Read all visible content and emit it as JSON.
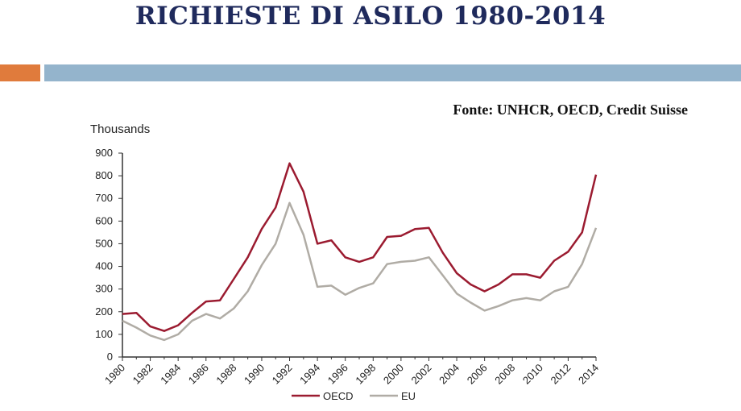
{
  "slide": {
    "title": "RICHIESTE DI ASILO 1980-2014",
    "source": "Fonte: UNHCR, OECD, Credit Suisse"
  },
  "colors": {
    "oecd": "#9b1b30",
    "eu": "#b0aca5",
    "title": "#1f2a5c"
  },
  "chart_data": {
    "type": "line",
    "ylabel": "Thousands",
    "ylim": [
      0,
      900
    ],
    "yticks": [
      0,
      100,
      200,
      300,
      400,
      500,
      600,
      700,
      800,
      900
    ],
    "xlim": [
      1980,
      2014
    ],
    "xticks": [
      "1980",
      "1982",
      "1984",
      "1986",
      "1988",
      "1990",
      "1992",
      "1994",
      "1996",
      "1998",
      "2000",
      "2002",
      "2004",
      "2006",
      "2008",
      "2010",
      "2012",
      "2014"
    ],
    "grid": false,
    "legend": "bottom",
    "x": [
      1980,
      1981,
      1982,
      1983,
      1984,
      1985,
      1986,
      1987,
      1988,
      1989,
      1990,
      1991,
      1992,
      1993,
      1994,
      1995,
      1996,
      1997,
      1998,
      1999,
      2000,
      2001,
      2002,
      2003,
      2004,
      2005,
      2006,
      2007,
      2008,
      2009,
      2010,
      2011,
      2012,
      2013,
      2014
    ],
    "series": [
      {
        "name": "OECD",
        "color": "#9b1b30",
        "values": [
          190,
          195,
          135,
          115,
          140,
          195,
          245,
          250,
          345,
          440,
          565,
          660,
          855,
          730,
          500,
          515,
          440,
          420,
          440,
          530,
          535,
          565,
          570,
          460,
          370,
          320,
          290,
          320,
          365,
          365,
          350,
          425,
          465,
          550,
          805
        ]
      },
      {
        "name": "EU",
        "color": "#b0aca5",
        "values": [
          160,
          130,
          95,
          75,
          100,
          160,
          190,
          170,
          215,
          290,
          405,
          500,
          680,
          540,
          310,
          315,
          275,
          305,
          325,
          410,
          420,
          425,
          440,
          360,
          280,
          240,
          205,
          225,
          250,
          260,
          250,
          290,
          310,
          410,
          570
        ]
      }
    ]
  }
}
